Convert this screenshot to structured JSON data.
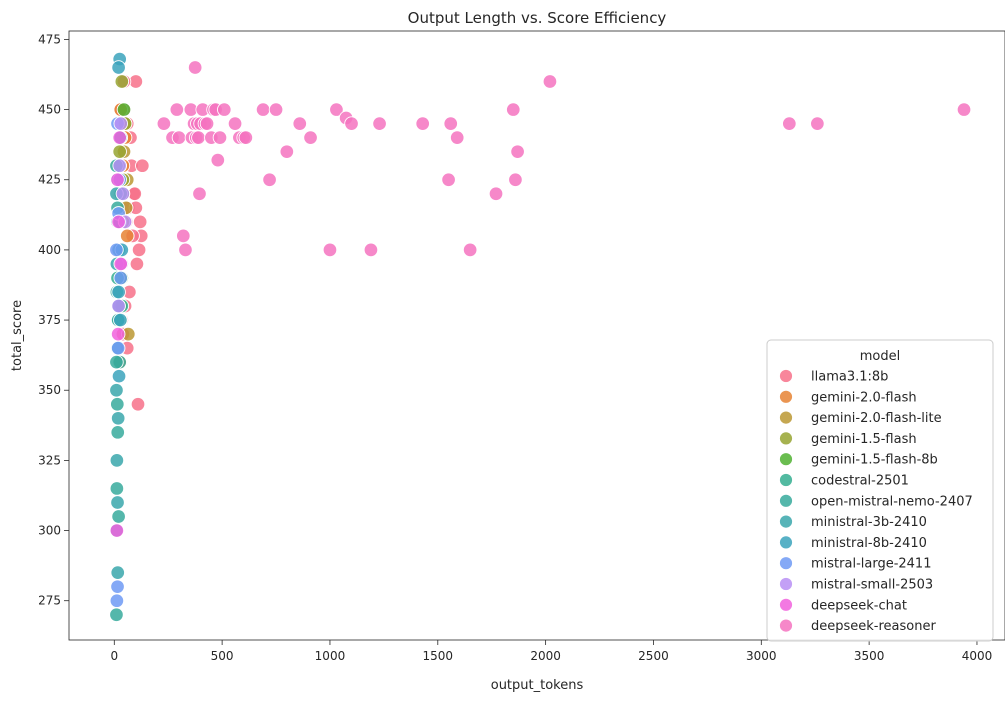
{
  "chart_data": {
    "type": "scatter",
    "title": "Output Length vs. Score Efficiency",
    "xlabel": "output_tokens",
    "ylabel": "total_score",
    "xlim": [
      -210,
      4130
    ],
    "ylim": [
      261,
      478
    ],
    "xticks": [
      "0",
      "500",
      "1000",
      "1500",
      "2000",
      "2500",
      "3000",
      "3500",
      "4000"
    ],
    "yticks": [
      "275",
      "300",
      "325",
      "350",
      "375",
      "400",
      "425",
      "450",
      "475"
    ],
    "grid": false,
    "legend": {
      "title": "model",
      "placement": "bottom-right"
    },
    "series": [
      {
        "name": "llama3.1:8b",
        "color": "#f77189",
        "x": [
          30,
          45,
          60,
          75,
          100,
          80,
          90,
          65,
          55,
          100,
          120,
          125,
          130,
          95,
          115,
          105,
          70,
          50,
          40,
          35,
          28,
          60,
          85,
          110,
          45
        ],
        "y": [
          450,
          450,
          445,
          440,
          460,
          430,
          420,
          415,
          410,
          415,
          410,
          405,
          430,
          420,
          400,
          395,
          385,
          380,
          370,
          375,
          360,
          365,
          405,
          345,
          460
        ]
      },
      {
        "name": "gemini-2.0-flash",
        "color": "#e68332",
        "x": [
          30,
          50,
          40,
          25,
          60,
          35
        ],
        "y": [
          450,
          440,
          430,
          420,
          405,
          395
        ]
      },
      {
        "name": "gemini-2.0-flash-lite",
        "color": "#bb9832",
        "x": [
          60,
          55,
          45,
          50,
          65,
          30,
          40
        ],
        "y": [
          425,
          415,
          435,
          445,
          370,
          380,
          410
        ]
      },
      {
        "name": "gemini-1.5-flash",
        "color": "#97a431",
        "x": [
          35,
          50,
          25,
          40,
          30
        ],
        "y": [
          460,
          445,
          435,
          425,
          390
        ]
      },
      {
        "name": "gemini-1.5-flash-8b",
        "color": "#50b131",
        "x": [
          45,
          30,
          25,
          40,
          20,
          35,
          30
        ],
        "y": [
          450,
          440,
          430,
          420,
          410,
          390,
          375
        ]
      },
      {
        "name": "codestral-2501",
        "color": "#34ae91",
        "x": [
          20,
          30,
          25,
          15,
          35,
          20,
          25
        ],
        "y": [
          430,
          420,
          400,
          390,
          380,
          375,
          360
        ]
      },
      {
        "name": "open-mistral-nemo-2407",
        "color": "#37aa9c",
        "x": [
          10,
          15,
          20,
          12,
          18,
          10,
          14,
          16,
          12,
          20,
          10
        ],
        "y": [
          430,
          415,
          400,
          385,
          375,
          360,
          345,
          335,
          315,
          305,
          270
        ]
      },
      {
        "name": "ministral-3b-2410",
        "color": "#39a7ac",
        "x": [
          10,
          15,
          12,
          20,
          14,
          10,
          18,
          12,
          15,
          10,
          16
        ],
        "y": [
          420,
          410,
          395,
          380,
          365,
          350,
          340,
          325,
          310,
          300,
          285
        ]
      },
      {
        "name": "ministral-8b-2410",
        "color": "#3ba3bc",
        "x": [
          25,
          20,
          30,
          15,
          25,
          35,
          20,
          28,
          22
        ],
        "y": [
          468,
          465,
          440,
          425,
          410,
          400,
          385,
          375,
          355
        ]
      },
      {
        "name": "mistral-large-2411",
        "color": "#6e9af4",
        "x": [
          15,
          25,
          20,
          10,
          30,
          18,
          15,
          12
        ],
        "y": [
          445,
          425,
          413,
          400,
          390,
          365,
          280,
          275
        ]
      },
      {
        "name": "mistral-small-2503",
        "color": "#b98ff4",
        "x": [
          30,
          25,
          40,
          50,
          35,
          20
        ],
        "y": [
          445,
          430,
          420,
          410,
          395,
          380
        ]
      },
      {
        "name": "deepseek-chat",
        "color": "#f161dd",
        "x": [
          25,
          15,
          20,
          30,
          18,
          12
        ],
        "y": [
          440,
          425,
          410,
          395,
          370,
          300
        ]
      },
      {
        "name": "deepseek-reasoner",
        "color": "#f473c0",
        "x": [
          230,
          270,
          290,
          300,
          320,
          330,
          355,
          360,
          370,
          375,
          380,
          385,
          390,
          395,
          400,
          410,
          420,
          430,
          450,
          460,
          470,
          480,
          490,
          510,
          560,
          580,
          600,
          610,
          690,
          720,
          750,
          800,
          860,
          910,
          1000,
          1030,
          1075,
          1100,
          1190,
          1230,
          1430,
          1550,
          1560,
          1590,
          1650,
          1770,
          1850,
          1860,
          1870,
          2020,
          3130,
          3260,
          3940
        ],
        "y": [
          445,
          440,
          450,
          440,
          405,
          400,
          450,
          440,
          445,
          465,
          440,
          445,
          440,
          420,
          445,
          450,
          445,
          445,
          440,
          450,
          450,
          432,
          440,
          450,
          445,
          440,
          440,
          440,
          450,
          425,
          450,
          435,
          445,
          440,
          400,
          450,
          447,
          445,
          400,
          445,
          445,
          425,
          445,
          440,
          400,
          420,
          450,
          425,
          435,
          460,
          445,
          445,
          450
        ]
      }
    ]
  }
}
